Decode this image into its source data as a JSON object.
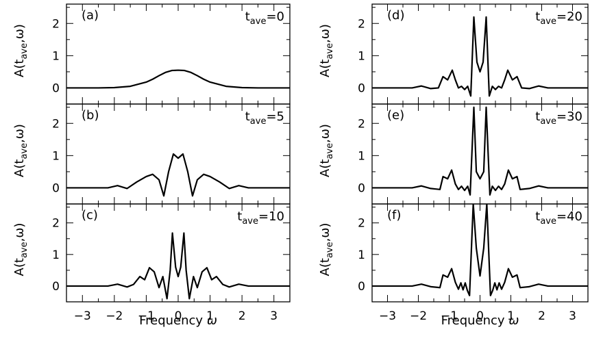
{
  "figure": {
    "x_title": "Frequency",
    "x_symbol": "ω",
    "y_label": {
      "prefix": "A(t",
      "subscript": "ave",
      "suffix": ",ω)"
    },
    "x_tick_labels": [
      "−3",
      "−2",
      "−1",
      "0",
      "1",
      "2",
      "3"
    ],
    "y_tick_labels": [
      "0",
      "1",
      "2"
    ]
  },
  "chart_data": [
    {
      "type": "line",
      "panel": "(a)",
      "t_label": "t",
      "t_sub": "ave",
      "t_value": "=0",
      "xlim": [
        -3.5,
        3.5
      ],
      "ylim": [
        -0.5,
        2.6
      ],
      "x_ticks": [
        -3,
        -2,
        -1,
        0,
        1,
        2,
        3
      ],
      "y_ticks": [
        0,
        1,
        2
      ],
      "series": [
        {
          "x": [
            -3.5,
            -2.5,
            -2.0,
            -1.5,
            -1.0,
            -0.8,
            -0.6,
            -0.4,
            -0.2,
            0.0,
            0.2,
            0.4,
            0.6,
            0.8,
            1.0,
            1.5,
            2.0,
            2.5,
            3.5
          ],
          "y": [
            0.0,
            0.0,
            0.01,
            0.05,
            0.18,
            0.27,
            0.38,
            0.48,
            0.54,
            0.55,
            0.54,
            0.48,
            0.38,
            0.27,
            0.18,
            0.05,
            0.01,
            0.0,
            0.0
          ]
        }
      ]
    },
    {
      "type": "line",
      "panel": "(b)",
      "t_label": "t",
      "t_sub": "ave",
      "t_value": "=5",
      "xlim": [
        -3.5,
        3.5
      ],
      "ylim": [
        -0.5,
        2.6
      ],
      "x_ticks": [
        -3,
        -2,
        -1,
        0,
        1,
        2,
        3
      ],
      "y_ticks": [
        0,
        1,
        2
      ],
      "series": [
        {
          "x": [
            -3.5,
            -2.2,
            -1.9,
            -1.6,
            -1.3,
            -1.0,
            -0.8,
            -0.6,
            -0.45,
            -0.3,
            -0.15,
            0.0,
            0.15,
            0.3,
            0.45,
            0.6,
            0.8,
            1.0,
            1.3,
            1.6,
            1.9,
            2.2,
            3.5
          ],
          "y": [
            0.0,
            0.0,
            0.07,
            -0.02,
            0.18,
            0.35,
            0.42,
            0.25,
            -0.25,
            0.5,
            1.05,
            0.92,
            1.05,
            0.5,
            -0.25,
            0.25,
            0.42,
            0.35,
            0.18,
            -0.02,
            0.07,
            0.0,
            0.0
          ]
        }
      ]
    },
    {
      "type": "line",
      "panel": "(c)",
      "t_label": "t",
      "t_sub": "ave",
      "t_value": "=10",
      "xlim": [
        -3.5,
        3.5
      ],
      "ylim": [
        -0.5,
        2.6
      ],
      "x_ticks": [
        -3,
        -2,
        -1,
        0,
        1,
        2,
        3
      ],
      "y_ticks": [
        0,
        1,
        2
      ],
      "series": [
        {
          "x": [
            -3.5,
            -2.2,
            -1.9,
            -1.6,
            -1.4,
            -1.2,
            -1.05,
            -0.9,
            -0.75,
            -0.6,
            -0.48,
            -0.35,
            -0.25,
            -0.18,
            -0.08,
            0.0,
            0.08,
            0.18,
            0.25,
            0.35,
            0.48,
            0.6,
            0.75,
            0.9,
            1.05,
            1.2,
            1.4,
            1.6,
            1.9,
            2.2,
            3.5
          ],
          "y": [
            0.0,
            0.0,
            0.06,
            -0.03,
            0.05,
            0.3,
            0.2,
            0.58,
            0.45,
            -0.05,
            0.3,
            -0.4,
            0.5,
            1.68,
            0.6,
            0.3,
            0.6,
            1.68,
            0.5,
            -0.4,
            0.3,
            -0.05,
            0.45,
            0.58,
            0.2,
            0.3,
            0.05,
            -0.03,
            0.06,
            0.0,
            0.0
          ]
        }
      ]
    },
    {
      "type": "line",
      "panel": "(d)",
      "t_label": "t",
      "t_sub": "ave",
      "t_value": "=20",
      "xlim": [
        -3.5,
        3.5
      ],
      "ylim": [
        -0.5,
        2.6
      ],
      "x_ticks": [
        -3,
        -2,
        -1,
        0,
        1,
        2,
        3
      ],
      "y_ticks": [
        0,
        1,
        2
      ],
      "series": [
        {
          "x": [
            -3.5,
            -2.2,
            -1.9,
            -1.6,
            -1.35,
            -1.2,
            -1.05,
            -0.9,
            -0.8,
            -0.7,
            -0.6,
            -0.5,
            -0.4,
            -0.3,
            -0.2,
            -0.1,
            0.0,
            0.1,
            0.2,
            0.3,
            0.4,
            0.5,
            0.6,
            0.7,
            0.8,
            0.9,
            1.05,
            1.2,
            1.35,
            1.6,
            1.9,
            2.2,
            3.5
          ],
          "y": [
            0.0,
            0.0,
            0.06,
            -0.02,
            0.0,
            0.35,
            0.25,
            0.55,
            0.25,
            0.0,
            0.05,
            -0.05,
            0.05,
            -0.25,
            2.2,
            0.8,
            0.5,
            0.8,
            2.2,
            -0.25,
            0.05,
            -0.05,
            0.05,
            0.0,
            0.25,
            0.55,
            0.25,
            0.35,
            0.0,
            -0.02,
            0.06,
            0.0,
            0.0
          ]
        }
      ]
    },
    {
      "type": "line",
      "panel": "(e)",
      "t_label": "t",
      "t_sub": "ave",
      "t_value": "=30",
      "xlim": [
        -3.5,
        3.5
      ],
      "ylim": [
        -0.5,
        2.6
      ],
      "x_ticks": [
        -3,
        -2,
        -1,
        0,
        1,
        2,
        3
      ],
      "y_ticks": [
        0,
        1,
        2
      ],
      "series": [
        {
          "x": [
            -3.5,
            -2.2,
            -1.9,
            -1.6,
            -1.3,
            -1.2,
            -1.05,
            -0.92,
            -0.8,
            -0.7,
            -0.6,
            -0.5,
            -0.4,
            -0.32,
            -0.2,
            -0.12,
            0.0,
            0.12,
            0.2,
            0.32,
            0.4,
            0.5,
            0.6,
            0.7,
            0.8,
            0.92,
            1.05,
            1.2,
            1.3,
            1.6,
            1.9,
            2.2,
            3.5
          ],
          "y": [
            0.0,
            0.0,
            0.06,
            -0.02,
            -0.05,
            0.35,
            0.28,
            0.55,
            0.12,
            -0.05,
            0.05,
            -0.08,
            0.05,
            -0.22,
            2.5,
            0.5,
            0.28,
            0.5,
            2.5,
            -0.22,
            0.05,
            -0.08,
            0.05,
            -0.05,
            0.12,
            0.55,
            0.28,
            0.35,
            -0.05,
            -0.02,
            0.06,
            0.0,
            0.0
          ]
        }
      ]
    },
    {
      "type": "line",
      "panel": "(f)",
      "t_label": "t",
      "t_sub": "ave",
      "t_value": "=40",
      "xlim": [
        -3.5,
        3.5
      ],
      "ylim": [
        -0.5,
        2.6
      ],
      "x_ticks": [
        -3,
        -2,
        -1,
        0,
        1,
        2,
        3
      ],
      "y_ticks": [
        0,
        1,
        2
      ],
      "series": [
        {
          "x": [
            -3.5,
            -2.2,
            -1.9,
            -1.6,
            -1.3,
            -1.2,
            -1.05,
            -0.92,
            -0.8,
            -0.7,
            -0.62,
            -0.55,
            -0.48,
            -0.41,
            -0.34,
            -0.22,
            -0.12,
            0.0,
            0.12,
            0.22,
            0.34,
            0.41,
            0.48,
            0.55,
            0.62,
            0.7,
            0.8,
            0.92,
            1.05,
            1.2,
            1.3,
            1.6,
            1.9,
            2.2,
            3.5
          ],
          "y": [
            0.0,
            0.0,
            0.06,
            -0.02,
            -0.05,
            0.35,
            0.28,
            0.55,
            0.12,
            -0.1,
            0.1,
            -0.12,
            0.1,
            -0.14,
            -0.3,
            2.6,
            1.2,
            0.32,
            1.2,
            2.6,
            -0.3,
            -0.14,
            0.1,
            -0.12,
            0.1,
            -0.1,
            0.12,
            0.55,
            0.28,
            0.35,
            -0.05,
            -0.02,
            0.06,
            0.0,
            0.0
          ]
        }
      ]
    }
  ]
}
